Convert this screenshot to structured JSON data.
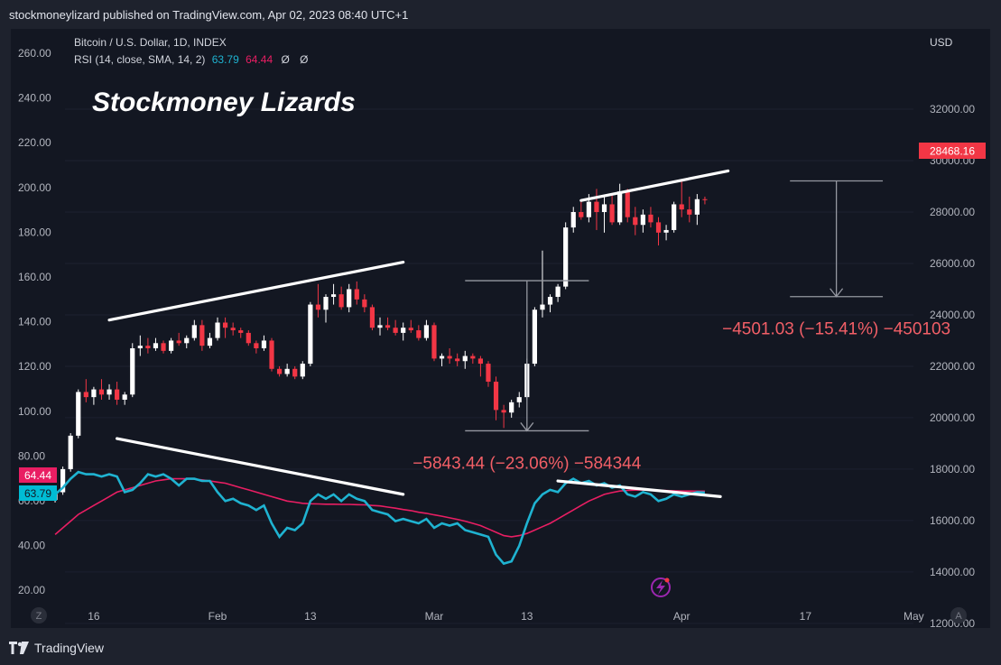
{
  "publisher_line": "stockmoneylizard published on TradingView.com, Apr 02, 2023 08:40 UTC+1",
  "footer_brand": "TradingView",
  "chart_data": {
    "type": "candlestick",
    "symbol_line": "Bitcoin / U.S. Dollar, 1D, INDEX",
    "indicator_line": {
      "prefix": "RSI (14, close, SMA, 14, 2)",
      "rsi": "63.79",
      "sma": "64.44",
      "suffix1": "Ø",
      "suffix2": "Ø"
    },
    "watermark": "Stockmoney Lizards",
    "currency": "USD",
    "last_price": "28468.16",
    "right_axis": {
      "ticks": [
        "32000.00",
        "30000.00",
        "28000.00",
        "26000.00",
        "24000.00",
        "22000.00",
        "20000.00",
        "18000.00",
        "16000.00",
        "14000.00",
        "12000.00"
      ],
      "range": [
        11000,
        33000
      ]
    },
    "left_axis": {
      "ticks": [
        "260.00",
        "240.00",
        "220.00",
        "200.00",
        "180.00",
        "160.00",
        "140.00",
        "120.00",
        "100.00",
        "80.00",
        "60.00",
        "40.00",
        "20.00"
      ]
    },
    "rsi_badges": {
      "sma": "64.44",
      "rsi": "63.79"
    },
    "x_ticks": [
      "16",
      "Feb",
      "13",
      "Mar",
      "13",
      "Apr",
      "17",
      "May"
    ],
    "x_tick_days": [
      0,
      16,
      28,
      44,
      56,
      76,
      92,
      106
    ],
    "timeline_left": "Z",
    "timeline_right": "A",
    "measurements": [
      {
        "label": "−5843.44 (−23.06%) −584344",
        "from_price": 25330,
        "to_price": 19490,
        "from_day": 48,
        "to_day": 64
      },
      {
        "label": "−4501.03 (−15.41%) −450103",
        "from_price": 29210,
        "to_price": 24710,
        "from_day": 90,
        "to_day": 102
      }
    ],
    "candles": [
      [
        -5,
        16800,
        17200,
        16700,
        17100
      ],
      [
        -4,
        17100,
        18100,
        17000,
        18000
      ],
      [
        -3,
        18000,
        19400,
        17900,
        19300
      ],
      [
        -2,
        19300,
        21100,
        19200,
        21000
      ],
      [
        -1,
        21000,
        21500,
        20600,
        20800
      ],
      [
        0,
        20800,
        21200,
        20500,
        21100
      ],
      [
        1,
        21100,
        21500,
        20700,
        20900
      ],
      [
        2,
        20900,
        21300,
        20700,
        21100
      ],
      [
        3,
        21100,
        21400,
        20500,
        20700
      ],
      [
        4,
        20700,
        21000,
        20500,
        20900
      ],
      [
        5,
        20900,
        22900,
        20800,
        22700
      ],
      [
        6,
        22700,
        23200,
        22400,
        22800
      ],
      [
        7,
        22800,
        23100,
        22500,
        22700
      ],
      [
        8,
        22700,
        23100,
        22600,
        22900
      ],
      [
        9,
        22900,
        23000,
        22500,
        22600
      ],
      [
        10,
        22600,
        23100,
        22500,
        23000
      ],
      [
        11,
        23000,
        23300,
        22800,
        22900
      ],
      [
        12,
        22900,
        23200,
        22700,
        23100
      ],
      [
        13,
        23100,
        23800,
        23000,
        23600
      ],
      [
        14,
        23600,
        23800,
        22600,
        22800
      ],
      [
        15,
        22800,
        23300,
        22700,
        23100
      ],
      [
        16,
        23100,
        23900,
        23000,
        23700
      ],
      [
        17,
        23700,
        23900,
        23100,
        23500
      ],
      [
        18,
        23500,
        23700,
        23200,
        23400
      ],
      [
        19,
        23400,
        23500,
        23100,
        23300
      ],
      [
        20,
        23300,
        23400,
        22800,
        22900
      ],
      [
        21,
        22900,
        23000,
        22500,
        22700
      ],
      [
        22,
        22700,
        23200,
        22600,
        23000
      ],
      [
        23,
        23000,
        23100,
        21800,
        21900
      ],
      [
        24,
        21900,
        22000,
        21600,
        21700
      ],
      [
        25,
        21700,
        22100,
        21600,
        21900
      ],
      [
        26,
        21900,
        22000,
        21500,
        21600
      ],
      [
        27,
        21600,
        22200,
        21500,
        22100
      ],
      [
        28,
        22100,
        24500,
        22000,
        24400
      ],
      [
        29,
        24400,
        25200,
        23900,
        24200
      ],
      [
        30,
        24200,
        24800,
        23700,
        24700
      ],
      [
        31,
        24700,
        25200,
        24400,
        24800
      ],
      [
        32,
        24800,
        25100,
        24200,
        24300
      ],
      [
        33,
        24300,
        25200,
        24100,
        25000
      ],
      [
        34,
        25000,
        25300,
        24400,
        24600
      ],
      [
        35,
        24600,
        24800,
        24100,
        24300
      ],
      [
        36,
        24300,
        24400,
        23400,
        23500
      ],
      [
        37,
        23500,
        23900,
        23200,
        23600
      ],
      [
        38,
        23600,
        23900,
        23400,
        23500
      ],
      [
        39,
        23500,
        23800,
        23200,
        23300
      ],
      [
        40,
        23300,
        23700,
        23000,
        23500
      ],
      [
        41,
        23500,
        23800,
        23300,
        23400
      ],
      [
        42,
        23400,
        23600,
        23000,
        23100
      ],
      [
        43,
        23100,
        23800,
        23000,
        23600
      ],
      [
        44,
        23600,
        23700,
        22200,
        22300
      ],
      [
        45,
        22300,
        22500,
        22000,
        22400
      ],
      [
        46,
        22400,
        22700,
        22100,
        22300
      ],
      [
        47,
        22300,
        22500,
        22000,
        22200
      ],
      [
        48,
        22200,
        22600,
        21900,
        22400
      ],
      [
        49,
        22400,
        22500,
        22100,
        22300
      ],
      [
        50,
        22300,
        22400,
        21600,
        22100
      ],
      [
        51,
        22100,
        22200,
        21200,
        21400
      ],
      [
        52,
        21400,
        21600,
        19900,
        20300
      ],
      [
        53,
        20300,
        20500,
        19600,
        20200
      ],
      [
        54,
        20200,
        20700,
        20000,
        20600
      ],
      [
        55,
        20600,
        21000,
        20400,
        20800
      ],
      [
        56,
        20800,
        22300,
        20700,
        22100
      ],
      [
        57,
        22100,
        24300,
        22000,
        24200
      ],
      [
        58,
        24200,
        26500,
        23900,
        24400
      ],
      [
        59,
        24400,
        24800,
        24100,
        24700
      ],
      [
        60,
        24700,
        25200,
        24500,
        25100
      ],
      [
        61,
        25100,
        27600,
        25000,
        27400
      ],
      [
        62,
        27400,
        28200,
        27200,
        28000
      ],
      [
        63,
        28000,
        28400,
        27700,
        27800
      ],
      [
        64,
        27800,
        28700,
        27600,
        28400
      ],
      [
        65,
        28400,
        28900,
        27300,
        28000
      ],
      [
        66,
        28000,
        28600,
        27200,
        28300
      ],
      [
        67,
        28300,
        28700,
        27500,
        27600
      ],
      [
        68,
        27600,
        29100,
        27500,
        28800
      ],
      [
        69,
        28800,
        28900,
        27600,
        27800
      ],
      [
        70,
        27800,
        28200,
        27100,
        27500
      ],
      [
        71,
        27500,
        28100,
        27200,
        27900
      ],
      [
        72,
        27900,
        28200,
        27400,
        27600
      ],
      [
        73,
        27600,
        27800,
        26700,
        27200
      ],
      [
        74,
        27200,
        27500,
        26900,
        27300
      ],
      [
        75,
        27300,
        28400,
        27200,
        28300
      ],
      [
        76,
        28300,
        29200,
        27800,
        28100
      ],
      [
        77,
        28100,
        28600,
        27600,
        27900
      ],
      [
        78,
        27900,
        28700,
        27500,
        28500
      ],
      [
        79,
        28500,
        28600,
        28300,
        28468
      ]
    ],
    "rsi_values": [
      [
        -5,
        63
      ],
      [
        -4,
        66
      ],
      [
        -3,
        70
      ],
      [
        -2,
        73
      ],
      [
        -1,
        72
      ],
      [
        0,
        72
      ],
      [
        1,
        71
      ],
      [
        2,
        72
      ],
      [
        3,
        71
      ],
      [
        4,
        64
      ],
      [
        5,
        65
      ],
      [
        6,
        68
      ],
      [
        7,
        72
      ],
      [
        8,
        71
      ],
      [
        9,
        72
      ],
      [
        10,
        70
      ],
      [
        11,
        67
      ],
      [
        12,
        70
      ],
      [
        13,
        70
      ],
      [
        14,
        69
      ],
      [
        15,
        69
      ],
      [
        16,
        64
      ],
      [
        17,
        60
      ],
      [
        18,
        61
      ],
      [
        19,
        59
      ],
      [
        20,
        58
      ],
      [
        21,
        56
      ],
      [
        22,
        58
      ],
      [
        23,
        50
      ],
      [
        24,
        44
      ],
      [
        25,
        48
      ],
      [
        26,
        47
      ],
      [
        27,
        50
      ],
      [
        28,
        60
      ],
      [
        29,
        63
      ],
      [
        30,
        61
      ],
      [
        31,
        63
      ],
      [
        32,
        60
      ],
      [
        33,
        63
      ],
      [
        34,
        61
      ],
      [
        35,
        60
      ],
      [
        36,
        56
      ],
      [
        37,
        55
      ],
      [
        38,
        54
      ],
      [
        39,
        51
      ],
      [
        40,
        52
      ],
      [
        41,
        51
      ],
      [
        42,
        50
      ],
      [
        43,
        52
      ],
      [
        44,
        48
      ],
      [
        45,
        50
      ],
      [
        46,
        49
      ],
      [
        47,
        50
      ],
      [
        48,
        47
      ],
      [
        49,
        46
      ],
      [
        50,
        45
      ],
      [
        51,
        44
      ],
      [
        52,
        36
      ],
      [
        53,
        32
      ],
      [
        54,
        33
      ],
      [
        55,
        40
      ],
      [
        56,
        50
      ],
      [
        57,
        59
      ],
      [
        58,
        63
      ],
      [
        59,
        65
      ],
      [
        60,
        64
      ],
      [
        61,
        68
      ],
      [
        62,
        70
      ],
      [
        63,
        68
      ],
      [
        64,
        69
      ],
      [
        65,
        67
      ],
      [
        66,
        68
      ],
      [
        67,
        66
      ],
      [
        68,
        67
      ],
      [
        69,
        63
      ],
      [
        70,
        62
      ],
      [
        71,
        64
      ],
      [
        72,
        63
      ],
      [
        73,
        60
      ],
      [
        74,
        61
      ],
      [
        75,
        63
      ],
      [
        76,
        62
      ],
      [
        77,
        63
      ],
      [
        78,
        64
      ],
      [
        79,
        63.79
      ]
    ],
    "rsi_sma_values": [
      [
        -5,
        45
      ],
      [
        -4,
        48
      ],
      [
        -3,
        51
      ],
      [
        -2,
        54
      ],
      [
        -1,
        56
      ],
      [
        0,
        58
      ],
      [
        1,
        60
      ],
      [
        2,
        62
      ],
      [
        3,
        64
      ],
      [
        4,
        65
      ],
      [
        5,
        66
      ],
      [
        6,
        67
      ],
      [
        7,
        68
      ],
      [
        8,
        69
      ],
      [
        9,
        69.5
      ],
      [
        10,
        70
      ],
      [
        11,
        70
      ],
      [
        12,
        70
      ],
      [
        13,
        69.8
      ],
      [
        14,
        69.5
      ],
      [
        15,
        69
      ],
      [
        16,
        68.5
      ],
      [
        17,
        68
      ],
      [
        18,
        67
      ],
      [
        19,
        66
      ],
      [
        20,
        65
      ],
      [
        21,
        64
      ],
      [
        22,
        63
      ],
      [
        23,
        62
      ],
      [
        24,
        61
      ],
      [
        25,
        60
      ],
      [
        26,
        59.5
      ],
      [
        27,
        59
      ],
      [
        28,
        58.8
      ],
      [
        29,
        58.7
      ],
      [
        30,
        58.6
      ],
      [
        31,
        58.6
      ],
      [
        32,
        58.5
      ],
      [
        33,
        58.5
      ],
      [
        34,
        58.4
      ],
      [
        35,
        58.3
      ],
      [
        36,
        58
      ],
      [
        37,
        57.8
      ],
      [
        38,
        57.3
      ],
      [
        39,
        56.8
      ],
      [
        40,
        56.2
      ],
      [
        41,
        55.7
      ],
      [
        42,
        55
      ],
      [
        43,
        54.5
      ],
      [
        44,
        53.8
      ],
      [
        45,
        53.2
      ],
      [
        46,
        52.5
      ],
      [
        47,
        51.8
      ],
      [
        48,
        51
      ],
      [
        49,
        50
      ],
      [
        50,
        49
      ],
      [
        51,
        47.5
      ],
      [
        52,
        46
      ],
      [
        53,
        44.5
      ],
      [
        54,
        44
      ],
      [
        55,
        44.5
      ],
      [
        56,
        45.5
      ],
      [
        57,
        47
      ],
      [
        58,
        48.5
      ],
      [
        59,
        50
      ],
      [
        60,
        52
      ],
      [
        61,
        54
      ],
      [
        62,
        56
      ],
      [
        63,
        58
      ],
      [
        64,
        60
      ],
      [
        65,
        61.5
      ],
      [
        66,
        63
      ],
      [
        67,
        63.8
      ],
      [
        68,
        64.5
      ],
      [
        69,
        64.8
      ],
      [
        70,
        64.9
      ],
      [
        71,
        65
      ],
      [
        72,
        64.9
      ],
      [
        73,
        64.8
      ],
      [
        74,
        64.7
      ],
      [
        75,
        64.6
      ],
      [
        76,
        64.5
      ],
      [
        77,
        64.5
      ],
      [
        78,
        64.44
      ],
      [
        79,
        64.44
      ]
    ],
    "trendlines_price": [
      {
        "d1": 2,
        "p1": 23800,
        "d2": 40,
        "p2": 26050
      },
      {
        "d1": 63,
        "p1": 28450,
        "d2": 82,
        "p2": 29600
      }
    ],
    "trendlines_rsi": [
      {
        "d1": 3,
        "r1": 88,
        "d2": 40,
        "r2": 63
      },
      {
        "d1": 60,
        "r1": 69,
        "d2": 81,
        "r2": 62
      }
    ],
    "colors": {
      "up": "#ffffff",
      "down": "#f23645",
      "rsi": "#1fb3d1",
      "sma": "#e91e63",
      "accent": "#9c27b0",
      "measure": "#f25f67"
    }
  }
}
